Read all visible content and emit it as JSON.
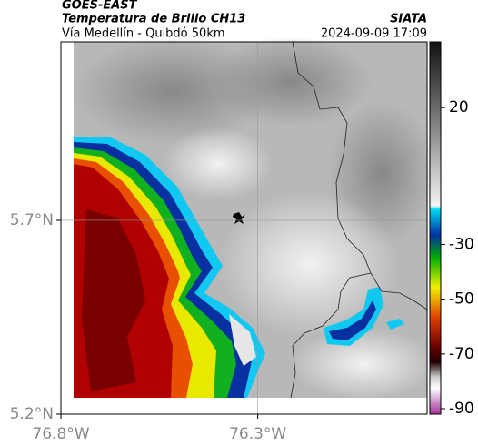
{
  "header": {
    "satellite": "GOES-EAST",
    "product": "Temperatura de Brillo CH13",
    "source": "SIATA",
    "region": "Vía Medellín - Quibdó 50km",
    "timestamp": "2024-09-09 17:09"
  },
  "chart_data": {
    "type": "map",
    "xlim": [
      -76.8,
      -75.87
    ],
    "ylim": [
      5.2,
      6.16
    ],
    "xticks": [
      {
        "value": -76.8,
        "label": "76.8°W"
      },
      {
        "value": -76.3,
        "label": "76.3°W"
      }
    ],
    "yticks": [
      {
        "value": 5.2,
        "label": "5.2°N"
      },
      {
        "value": 5.7,
        "label": "5.7°N"
      }
    ],
    "grid": true,
    "colorbar": {
      "lim": [
        -92,
        44
      ],
      "ticks": [
        20,
        -30,
        -50,
        -70,
        -90
      ]
    }
  }
}
